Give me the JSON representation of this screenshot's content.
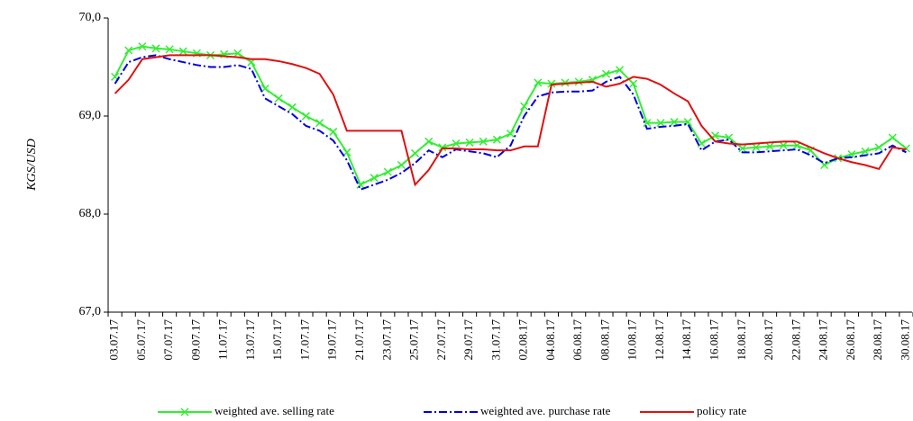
{
  "chart_data": {
    "type": "line",
    "ylabel": "KGS/USD",
    "categories": [
      "03.07.17",
      null,
      "05.07.17",
      null,
      "07.07.17",
      null,
      "09.07.17",
      null,
      "11.07.17",
      null,
      "13.07.17",
      null,
      "15.07.17",
      null,
      "17.07.17",
      null,
      "19.07.17",
      null,
      "21.07.17",
      null,
      "23.07.17",
      null,
      "25.07.17",
      null,
      "27.07.17",
      null,
      "29.07.17",
      null,
      "31.07.17",
      null,
      "02.08.17",
      null,
      "04.08.17",
      null,
      "06.08.17",
      null,
      "08.08.17",
      null,
      "10.08.17",
      null,
      "12.08.17",
      null,
      "14.08.17",
      null,
      "16.08.17",
      null,
      "18.08.17",
      null,
      "20.08.17",
      null,
      "22.08.17",
      null,
      "24.08.17",
      null,
      "26.08.17",
      null,
      "28.08.17",
      null,
      "30.08.17"
    ],
    "series": [
      {
        "name": "weighted ave. selling rate",
        "color": "#33ee33",
        "marker": "x",
        "values": [
          69.4,
          69.67,
          69.71,
          69.69,
          69.68,
          69.66,
          69.64,
          69.62,
          69.63,
          69.64,
          69.55,
          69.28,
          69.18,
          69.09,
          69.0,
          68.93,
          68.84,
          68.63,
          68.3,
          68.37,
          68.43,
          68.5,
          68.62,
          68.74,
          68.68,
          68.72,
          68.73,
          68.74,
          68.76,
          68.82,
          69.1,
          69.34,
          69.33,
          69.34,
          69.35,
          69.37,
          69.43,
          69.47,
          69.33,
          68.93,
          68.93,
          68.94,
          68.94,
          68.72,
          68.8,
          68.78,
          68.67,
          68.68,
          68.69,
          68.7,
          68.7,
          68.65,
          68.5,
          68.57,
          68.61,
          68.64,
          68.68,
          68.78,
          68.67
        ]
      },
      {
        "name": "weighted ave. purchase rate",
        "color": "#0000dd",
        "dash": "9 3 2 3",
        "values": [
          69.33,
          69.55,
          69.6,
          69.62,
          69.58,
          69.55,
          69.52,
          69.5,
          69.5,
          69.52,
          69.48,
          69.18,
          69.1,
          69.02,
          68.9,
          68.85,
          68.75,
          68.55,
          68.25,
          68.3,
          68.35,
          68.42,
          68.52,
          68.65,
          68.58,
          68.66,
          68.64,
          68.62,
          68.58,
          68.7,
          69.0,
          69.2,
          69.24,
          69.25,
          69.25,
          69.26,
          69.35,
          69.4,
          69.22,
          68.87,
          68.89,
          68.9,
          68.92,
          68.65,
          68.74,
          68.76,
          68.63,
          68.63,
          68.64,
          68.65,
          68.66,
          68.6,
          68.52,
          68.57,
          68.58,
          68.6,
          68.62,
          68.7,
          68.63
        ]
      },
      {
        "name": "policy rate",
        "color": "#e01010",
        "values": [
          69.23,
          69.37,
          69.58,
          69.6,
          69.62,
          69.62,
          69.62,
          69.62,
          69.61,
          69.6,
          69.58,
          69.58,
          69.56,
          69.53,
          69.49,
          69.43,
          69.22,
          68.85,
          68.85,
          68.85,
          68.85,
          68.85,
          68.3,
          68.45,
          68.67,
          68.67,
          68.66,
          68.66,
          68.65,
          68.65,
          68.69,
          68.69,
          69.32,
          69.33,
          69.34,
          69.35,
          69.3,
          69.33,
          69.4,
          69.38,
          69.32,
          69.23,
          69.15,
          68.9,
          68.74,
          68.72,
          68.71,
          68.72,
          68.73,
          68.74,
          68.74,
          68.68,
          68.62,
          68.57,
          68.53,
          68.5,
          68.46,
          68.68,
          68.66
        ]
      }
    ],
    "ylim": [
      67.0,
      70.0
    ],
    "yticks": [
      {
        "value": 67,
        "label": "67,0"
      },
      {
        "value": 68,
        "label": "68,0"
      },
      {
        "value": 69,
        "label": "69,0"
      },
      {
        "value": 70,
        "label": "70,0"
      }
    ],
    "grid": false,
    "legend": "bottom"
  }
}
